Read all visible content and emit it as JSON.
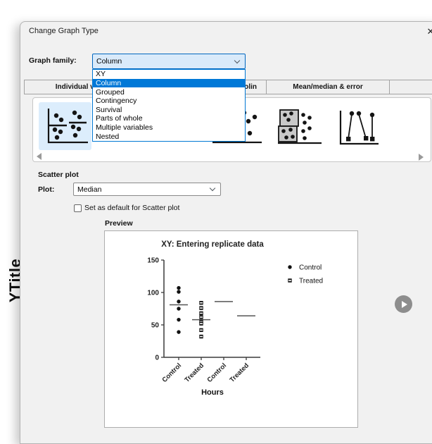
{
  "window": {
    "title": "Change Graph Type",
    "close_icon": "✕"
  },
  "background": {
    "y_axis_title": "YTitle"
  },
  "graph_family": {
    "label": "Graph family:",
    "value": "Column",
    "selected_option": "Column",
    "options": [
      "XY",
      "Column",
      "Grouped",
      "Contingency",
      "Survival",
      "Parts of whole",
      "Multiple variables",
      "Nested"
    ]
  },
  "tabs": [
    {
      "label": "Individual values"
    },
    {
      "label": "Box & violin"
    },
    {
      "label": "Mean/median & error"
    }
  ],
  "gallery": {
    "thumbnails": [
      "scatter-with-median-icon",
      "scatter-plot-icon",
      "floating-bars-with-points-icon",
      "before-after-icon"
    ],
    "selected_thumbnail": "scatter-with-median-icon"
  },
  "scatter_section": {
    "heading": "Scatter plot",
    "plot_label": "Plot:",
    "plot_value": "Median",
    "default_checkbox_label": "Set as default for Scatter plot",
    "default_checkbox_checked": false
  },
  "preview": {
    "heading": "Preview"
  },
  "chart_data": {
    "type": "scatter",
    "title": "XY: Entering replicate data",
    "xlabel": "Hours",
    "ylabel": "",
    "ylim": [
      0,
      150
    ],
    "yticks": [
      0,
      50,
      100,
      150
    ],
    "categories": [
      "Control",
      "Treated",
      "Control",
      "Treated"
    ],
    "series": [
      {
        "category": "Control",
        "symbol": "circle",
        "values": [
          107,
          101,
          86,
          75,
          58,
          39
        ],
        "median": 81
      },
      {
        "category": "Treated",
        "symbol": "square",
        "values": [
          84,
          76,
          68,
          62,
          55,
          52,
          42,
          32
        ],
        "median": 58
      },
      {
        "category": "Control",
        "symbol": "circle",
        "values": [],
        "median": 86
      },
      {
        "category": "Treated",
        "symbol": "square",
        "values": [],
        "median": 64
      }
    ],
    "legend": [
      {
        "label": "Control",
        "symbol": "circle"
      },
      {
        "label": "Treated",
        "symbol": "square"
      }
    ],
    "grid": false,
    "legend_position": "upper right",
    "colors": {
      "points": "#111111",
      "axis": "#3a3a3a",
      "median_line": "#555555"
    }
  }
}
